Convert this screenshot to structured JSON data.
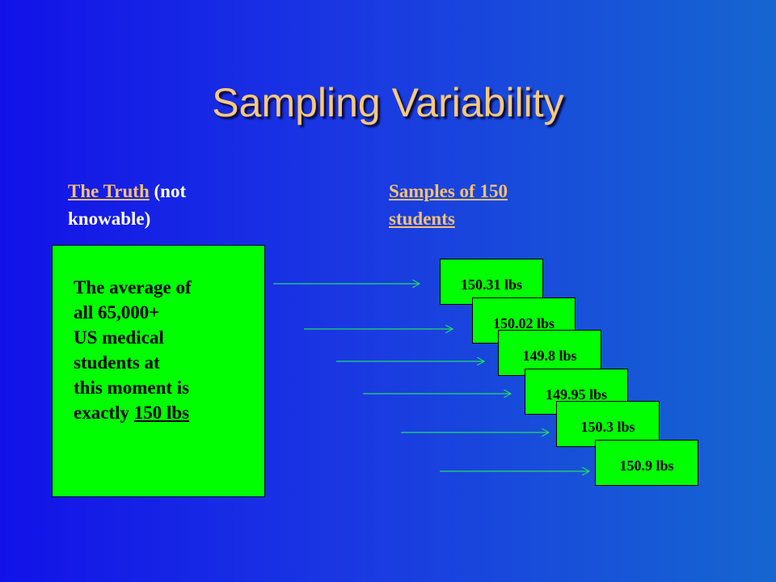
{
  "slide": {
    "title": "Sampling Variability",
    "left_header": {
      "link": "The Truth",
      "rest": " (not knowable)"
    },
    "right_header": {
      "link": "Samples of 150 students"
    },
    "truth_box": {
      "line1": "The average of",
      "line2": "all 65,000+",
      "line3": "US medical",
      "line4": "students at",
      "line5": "this moment is",
      "line6_prefix": "exactly ",
      "line6_value": "150 lbs"
    },
    "samples": [
      "150.31 lbs",
      "150.02 lbs",
      "149.8 lbs",
      "149.95 lbs",
      "150.3 lbs",
      "150.9 lbs"
    ],
    "colors": {
      "background_left": "#1212e8",
      "background_right": "#1566d0",
      "title": "#f7c97a",
      "header_link": "#f5c070",
      "box_fill": "#00ff00",
      "arrow": "#22dd66"
    }
  }
}
